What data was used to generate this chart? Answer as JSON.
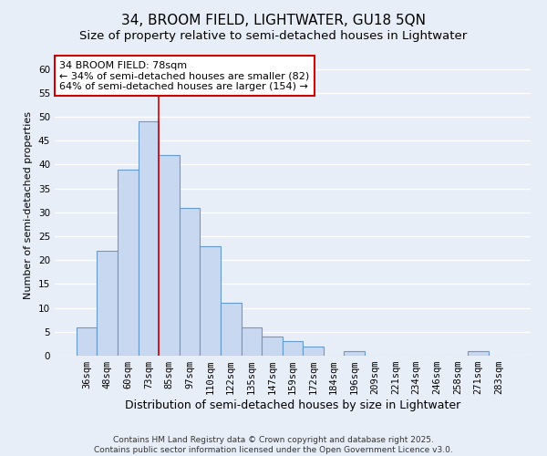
{
  "title": "34, BROOM FIELD, LIGHTWATER, GU18 5QN",
  "subtitle": "Size of property relative to semi-detached houses in Lightwater",
  "xlabel": "Distribution of semi-detached houses by size in Lightwater",
  "ylabel": "Number of semi-detached properties",
  "bar_labels": [
    "36sqm",
    "48sqm",
    "60sqm",
    "73sqm",
    "85sqm",
    "97sqm",
    "110sqm",
    "122sqm",
    "135sqm",
    "147sqm",
    "159sqm",
    "172sqm",
    "184sqm",
    "196sqm",
    "209sqm",
    "221sqm",
    "234sqm",
    "246sqm",
    "258sqm",
    "271sqm",
    "283sqm"
  ],
  "bar_values": [
    6,
    22,
    39,
    49,
    42,
    31,
    23,
    11,
    6,
    4,
    3,
    2,
    0,
    1,
    0,
    0,
    0,
    0,
    0,
    1,
    0
  ],
  "bar_color": "#c8d8f0",
  "bar_edge_color": "#6699cc",
  "vline_x": 3.5,
  "vline_color": "#cc0000",
  "annotation_title": "34 BROOM FIELD: 78sqm",
  "annotation_line1": "← 34% of semi-detached houses are smaller (82)",
  "annotation_line2": "64% of semi-detached houses are larger (154) →",
  "ylim": [
    0,
    63
  ],
  "yticks": [
    0,
    5,
    10,
    15,
    20,
    25,
    30,
    35,
    40,
    45,
    50,
    55,
    60
  ],
  "background_color": "#e8eef8",
  "grid_color": "#ffffff",
  "footer_line1": "Contains HM Land Registry data © Crown copyright and database right 2025.",
  "footer_line2": "Contains public sector information licensed under the Open Government Licence v3.0.",
  "title_fontsize": 11,
  "subtitle_fontsize": 9.5,
  "xlabel_fontsize": 9,
  "ylabel_fontsize": 8,
  "tick_fontsize": 7.5,
  "annotation_fontsize": 8,
  "footer_fontsize": 6.5
}
